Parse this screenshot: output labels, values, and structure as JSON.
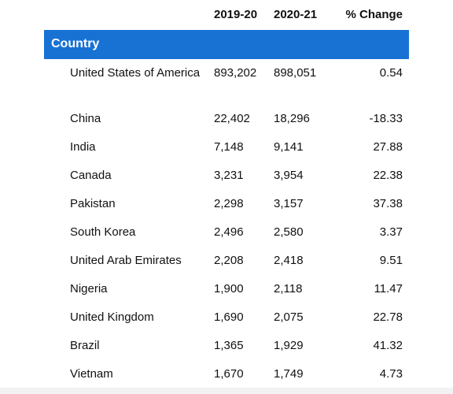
{
  "table": {
    "columns": {
      "year1": "2019-20",
      "year2": "2020-21",
      "change": "% Change"
    },
    "band_label": "Country",
    "rows": [
      {
        "country": "United States of America",
        "y1": "893,202",
        "y2": "898,051",
        "change": "0.54"
      },
      {
        "country": "China",
        "y1": "22,402",
        "y2": "18,296",
        "change": "-18.33"
      },
      {
        "country": "India",
        "y1": "7,148",
        "y2": "9,141",
        "change": "27.88"
      },
      {
        "country": "Canada",
        "y1": "3,231",
        "y2": "3,954",
        "change": "22.38"
      },
      {
        "country": "Pakistan",
        "y1": "2,298",
        "y2": "3,157",
        "change": "37.38"
      },
      {
        "country": "South Korea",
        "y1": "2,496",
        "y2": "2,580",
        "change": "3.37"
      },
      {
        "country": "United Arab Emirates",
        "y1": "2,208",
        "y2": "2,418",
        "change": "9.51"
      },
      {
        "country": "Nigeria",
        "y1": "1,900",
        "y2": "2,118",
        "change": "11.47"
      },
      {
        "country": "United Kingdom",
        "y1": "1,690",
        "y2": "2,075",
        "change": "22.78"
      },
      {
        "country": "Brazil",
        "y1": "1,365",
        "y2": "1,929",
        "change": "41.32"
      },
      {
        "country": "Vietnam",
        "y1": "1,670",
        "y2": "1,749",
        "change": "4.73"
      }
    ]
  },
  "colors": {
    "band": "#1872d4",
    "band_text": "#ffffff",
    "text": "#111111"
  }
}
